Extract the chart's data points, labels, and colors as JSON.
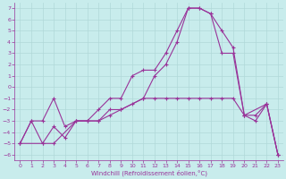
{
  "background_color": "#c8ecec",
  "grid_color": "#b0d8d8",
  "line_color": "#993399",
  "xlabel": "Windchill (Refroidissement éolien,°C)",
  "xlim": [
    -0.5,
    23.5
  ],
  "ylim": [
    -6.5,
    7.5
  ],
  "xticks": [
    0,
    1,
    2,
    3,
    4,
    5,
    6,
    7,
    8,
    9,
    10,
    11,
    12,
    13,
    14,
    15,
    16,
    17,
    18,
    19,
    20,
    21,
    22,
    23
  ],
  "yticks": [
    7,
    6,
    5,
    4,
    3,
    2,
    1,
    0,
    -1,
    -2,
    -3,
    -4,
    -5,
    -6
  ],
  "line1_x": [
    0,
    1,
    2,
    3,
    4,
    5,
    6,
    7,
    8,
    9,
    10,
    11,
    12,
    13,
    14,
    15,
    16,
    17,
    18,
    19,
    20,
    21,
    22,
    23
  ],
  "line1_y": [
    -5,
    -3,
    -3,
    -1,
    -3.5,
    -3,
    -3,
    -2,
    -1,
    -1,
    1,
    1.5,
    1.5,
    3,
    5,
    7,
    7,
    6.5,
    3,
    3,
    -2.5,
    -2.5,
    -1.5,
    -6
  ],
  "line2_x": [
    0,
    1,
    2,
    3,
    4,
    5,
    6,
    7,
    8,
    9,
    10,
    11,
    12,
    13,
    14,
    15,
    16,
    17,
    18,
    19,
    20,
    21,
    22,
    23
  ],
  "line2_y": [
    -5,
    -3,
    -5,
    -3.5,
    -4.5,
    -3,
    -3,
    -3,
    -2.5,
    -2,
    -1.5,
    -1,
    1,
    2,
    4,
    7,
    7,
    6.5,
    5,
    3.5,
    -2.5,
    -3,
    -1.5,
    -6
  ],
  "line3_x": [
    0,
    2,
    3,
    5,
    7,
    8,
    9,
    11,
    12,
    13,
    14,
    15,
    16,
    17,
    18,
    19,
    20,
    22,
    23
  ],
  "line3_y": [
    -5,
    -5,
    -5,
    -3,
    -3,
    -2,
    -2,
    -1,
    -1,
    -1,
    -1,
    -1,
    -1,
    -1,
    -1,
    -1,
    -2.5,
    -1.5,
    -6
  ]
}
